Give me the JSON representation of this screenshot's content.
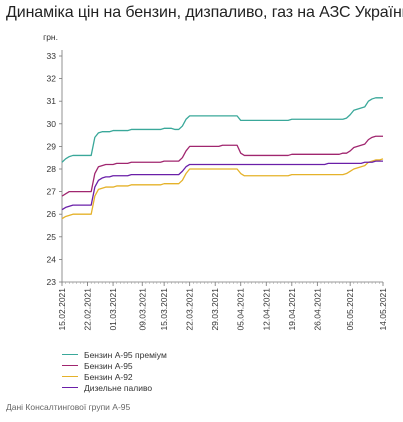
{
  "title": "Динаміка цін на бензин, дизпаливо, газ на АЗС України",
  "source": "Дані Консалтингової групи А-95",
  "chart_data": {
    "type": "line",
    "ylabel": "грн.",
    "ylim": [
      23,
      33
    ],
    "yticks": [
      23,
      24,
      25,
      26,
      27,
      28,
      29,
      30,
      31,
      32,
      33
    ],
    "xtick_labels": [
      "15.02.2021",
      "22.02.2021",
      "01.03.2021",
      "09.03.2021",
      "15.03.2021",
      "22.03.2021",
      "29.03.2021",
      "05.04.2021",
      "12.04.2021",
      "19.04.2021",
      "26.04.2021",
      "05.05.2021",
      "14.05.2021"
    ],
    "x": [
      "15.02",
      "16.02",
      "17.02",
      "18.02",
      "19.02",
      "20.02",
      "21.02",
      "22.02",
      "23.02",
      "24.02",
      "25.02",
      "26.02",
      "27.02",
      "28.02",
      "01.03",
      "02.03",
      "03.03",
      "04.03",
      "05.03",
      "06.03",
      "07.03",
      "08.03",
      "09.03",
      "10.03",
      "11.03",
      "12.03",
      "13.03",
      "14.03",
      "15.03",
      "16.03",
      "17.03",
      "18.03",
      "19.03",
      "20.03",
      "21.03",
      "22.03",
      "23.03",
      "24.03",
      "25.03",
      "26.03",
      "27.03",
      "28.03",
      "29.03",
      "30.03",
      "31.03",
      "01.04",
      "02.04",
      "03.04",
      "04.04",
      "05.04",
      "06.04",
      "07.04",
      "08.04",
      "09.04",
      "10.04",
      "11.04",
      "12.04",
      "13.04",
      "14.04",
      "15.04",
      "16.04",
      "17.04",
      "18.04",
      "19.04",
      "20.04",
      "21.04",
      "22.04",
      "23.04",
      "24.04",
      "25.04",
      "26.04",
      "27.04",
      "28.04",
      "29.04",
      "30.04",
      "01.05",
      "02.05",
      "03.05",
      "04.05",
      "05.05",
      "06.05",
      "07.05",
      "08.05",
      "09.05",
      "10.05",
      "11.05",
      "12.05",
      "13.05",
      "14.05"
    ],
    "series": [
      {
        "name": "Бензин А-95 преміум",
        "color": "#3aa89a",
        "values": [
          28.3,
          28.45,
          28.55,
          28.6,
          28.6,
          28.6,
          28.6,
          28.6,
          28.6,
          29.4,
          29.6,
          29.65,
          29.65,
          29.65,
          29.7,
          29.7,
          29.7,
          29.7,
          29.7,
          29.75,
          29.75,
          29.75,
          29.75,
          29.75,
          29.75,
          29.75,
          29.75,
          29.75,
          29.8,
          29.8,
          29.8,
          29.75,
          29.75,
          29.9,
          30.2,
          30.35,
          30.35,
          30.35,
          30.35,
          30.35,
          30.35,
          30.35,
          30.35,
          30.35,
          30.35,
          30.35,
          30.35,
          30.35,
          30.35,
          30.15,
          30.15,
          30.15,
          30.15,
          30.15,
          30.15,
          30.15,
          30.15,
          30.15,
          30.15,
          30.15,
          30.15,
          30.15,
          30.15,
          30.2,
          30.2,
          30.2,
          30.2,
          30.2,
          30.2,
          30.2,
          30.2,
          30.2,
          30.2,
          30.2,
          30.2,
          30.2,
          30.2,
          30.2,
          30.25,
          30.4,
          30.6,
          30.65,
          30.7,
          30.75,
          31.0,
          31.1,
          31.15,
          31.15,
          31.15
        ]
      },
      {
        "name": "Бензин А-95",
        "color": "#a0266f",
        "values": [
          26.8,
          26.9,
          27.0,
          27.0,
          27.0,
          27.0,
          27.0,
          27.0,
          27.0,
          27.8,
          28.1,
          28.15,
          28.2,
          28.2,
          28.2,
          28.25,
          28.25,
          28.25,
          28.25,
          28.3,
          28.3,
          28.3,
          28.3,
          28.3,
          28.3,
          28.3,
          28.3,
          28.3,
          28.35,
          28.35,
          28.35,
          28.35,
          28.35,
          28.5,
          28.8,
          29.0,
          29.0,
          29.0,
          29.0,
          29.0,
          29.0,
          29.0,
          29.0,
          29.0,
          29.05,
          29.05,
          29.05,
          29.05,
          29.05,
          28.7,
          28.6,
          28.6,
          28.6,
          28.6,
          28.6,
          28.6,
          28.6,
          28.6,
          28.6,
          28.6,
          28.6,
          28.6,
          28.6,
          28.65,
          28.65,
          28.65,
          28.65,
          28.65,
          28.65,
          28.65,
          28.65,
          28.65,
          28.65,
          28.65,
          28.65,
          28.65,
          28.65,
          28.7,
          28.7,
          28.8,
          28.95,
          29.0,
          29.05,
          29.1,
          29.3,
          29.4,
          29.45,
          29.45,
          29.45
        ]
      },
      {
        "name": "Бензин А-92",
        "color": "#e5b22a",
        "values": [
          25.8,
          25.9,
          25.95,
          26.0,
          26.0,
          26.0,
          26.0,
          26.0,
          26.0,
          26.8,
          27.1,
          27.15,
          27.2,
          27.2,
          27.2,
          27.25,
          27.25,
          27.25,
          27.25,
          27.3,
          27.3,
          27.3,
          27.3,
          27.3,
          27.3,
          27.3,
          27.3,
          27.3,
          27.35,
          27.35,
          27.35,
          27.35,
          27.35,
          27.5,
          27.8,
          28.0,
          28.0,
          28.0,
          28.0,
          28.0,
          28.0,
          28.0,
          28.0,
          28.0,
          28.0,
          28.0,
          28.0,
          28.0,
          28.0,
          27.8,
          27.7,
          27.7,
          27.7,
          27.7,
          27.7,
          27.7,
          27.7,
          27.7,
          27.7,
          27.7,
          27.7,
          27.7,
          27.7,
          27.75,
          27.75,
          27.75,
          27.75,
          27.75,
          27.75,
          27.75,
          27.75,
          27.75,
          27.75,
          27.75,
          27.75,
          27.75,
          27.75,
          27.75,
          27.8,
          27.9,
          28.0,
          28.05,
          28.1,
          28.15,
          28.3,
          28.35,
          28.4,
          28.4,
          28.45
        ]
      },
      {
        "name": "Дизельне паливо",
        "color": "#6a1fa8",
        "values": [
          26.2,
          26.3,
          26.35,
          26.4,
          26.4,
          26.4,
          26.4,
          26.4,
          26.4,
          27.2,
          27.5,
          27.6,
          27.65,
          27.65,
          27.7,
          27.7,
          27.7,
          27.7,
          27.7,
          27.75,
          27.75,
          27.75,
          27.75,
          27.75,
          27.75,
          27.75,
          27.75,
          27.75,
          27.75,
          27.75,
          27.75,
          27.75,
          27.75,
          27.9,
          28.1,
          28.2,
          28.2,
          28.2,
          28.2,
          28.2,
          28.2,
          28.2,
          28.2,
          28.2,
          28.2,
          28.2,
          28.2,
          28.2,
          28.2,
          28.2,
          28.2,
          28.2,
          28.2,
          28.2,
          28.2,
          28.2,
          28.2,
          28.2,
          28.2,
          28.2,
          28.2,
          28.2,
          28.2,
          28.2,
          28.2,
          28.2,
          28.2,
          28.2,
          28.2,
          28.2,
          28.2,
          28.2,
          28.2,
          28.25,
          28.25,
          28.25,
          28.25,
          28.25,
          28.25,
          28.25,
          28.25,
          28.25,
          28.25,
          28.3,
          28.3,
          28.3,
          28.35,
          28.35,
          28.35
        ]
      }
    ],
    "grid": false,
    "legend_placement": "bottom-left"
  }
}
